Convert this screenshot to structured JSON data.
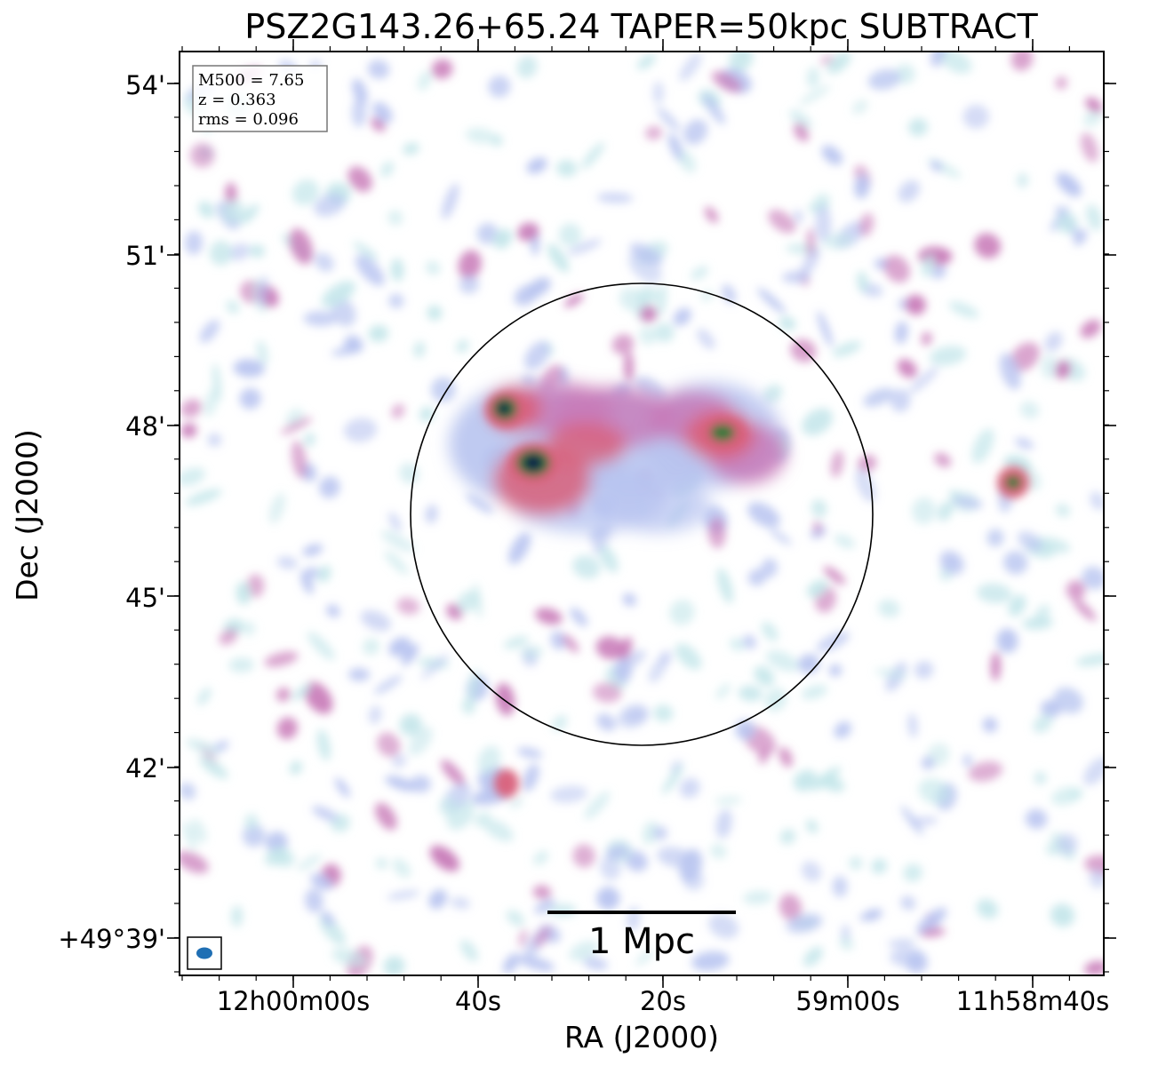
{
  "title": "PSZ2G143.26+65.24 TAPER=50kpc SUBTRACT",
  "axes": {
    "xlabel": "RA (J2000)",
    "ylabel": "Dec (J2000)",
    "x_ticks": [
      "12h00m00s",
      "40s",
      "20s",
      "59m00s",
      "11h58m40s"
    ],
    "y_ticks": [
      "+49°39'",
      "42'",
      "45'",
      "48'",
      "51'",
      "54'"
    ]
  },
  "info_box": {
    "lines": [
      "M500 = 7.65",
      "z = 0.363",
      "rms = 0.096"
    ]
  },
  "scale_bar": {
    "label": "1 Mpc"
  },
  "colors": {
    "faint_emission": "#c4e6ea",
    "low_emission": "#b8c4f0",
    "mid_emission": "#c87ab8",
    "high_emission": "#d9607a",
    "peak_emission": "#2e7a3a",
    "core_emission": "#0e1a48",
    "beam": "#1f6fb4",
    "frame": "#000000"
  }
}
